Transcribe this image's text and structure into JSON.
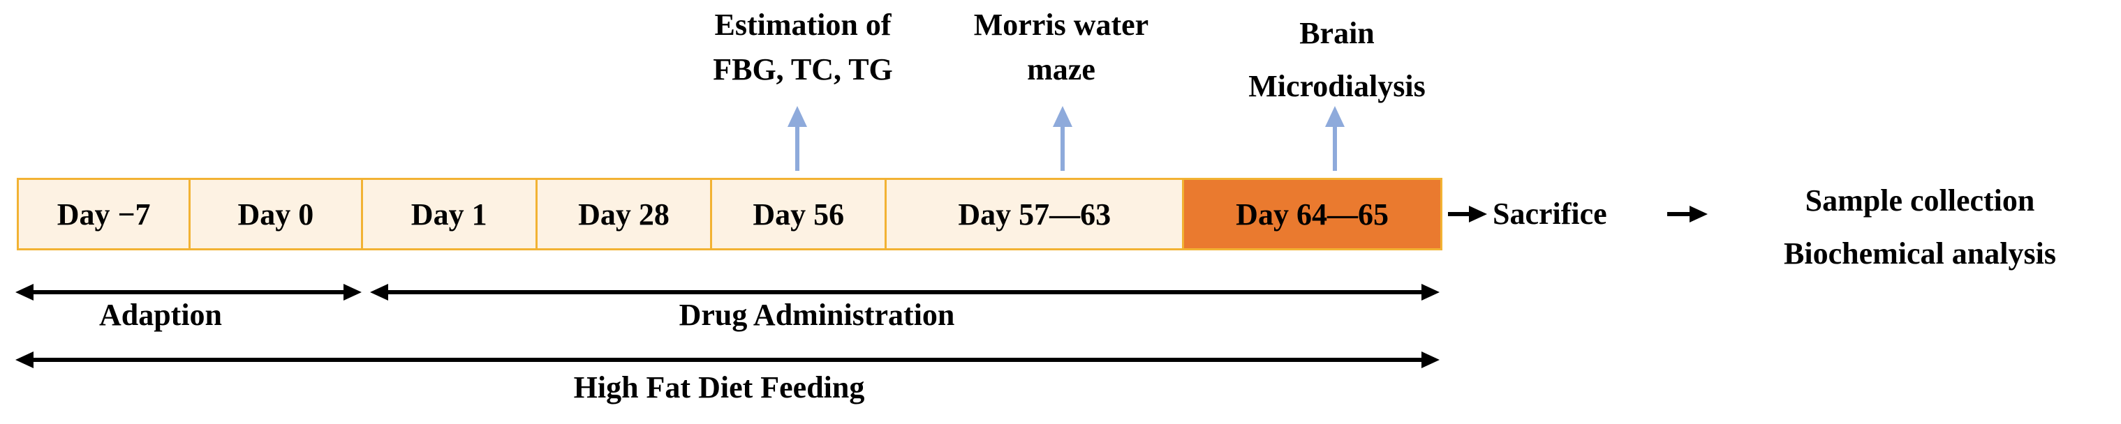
{
  "timeline": {
    "cells": [
      {
        "label": "Day −7",
        "highlight": false
      },
      {
        "label": "Day 0",
        "highlight": false
      },
      {
        "label": "Day 1",
        "highlight": false
      },
      {
        "label": "Day 28",
        "highlight": false
      },
      {
        "label": "Day 56",
        "highlight": false
      },
      {
        "label": "Day 57—63",
        "highlight": false
      },
      {
        "label": "Day 64—65",
        "highlight": true
      }
    ],
    "box_fill": "#fdf2e3",
    "box_border": "#f2b233",
    "highlight_fill": "#ea7a2f"
  },
  "events": {
    "estimation": {
      "line1": "Estimation of",
      "line2": "FBG, TC, TG"
    },
    "morris": {
      "line1": "Morris water",
      "line2": "maze"
    },
    "microdialysis": {
      "line1": "Brain",
      "line2": "Microdialysis"
    },
    "arrow_color": "#8eaadb"
  },
  "flow": {
    "sacrifice": "Sacrifice",
    "sample_collection": "Sample collection",
    "biochemical_analysis": "Biochemical analysis"
  },
  "spans": {
    "adaption": "Adaption",
    "drug_administration": "Drug Administration",
    "high_fat_diet": "High Fat Diet Feeding"
  }
}
